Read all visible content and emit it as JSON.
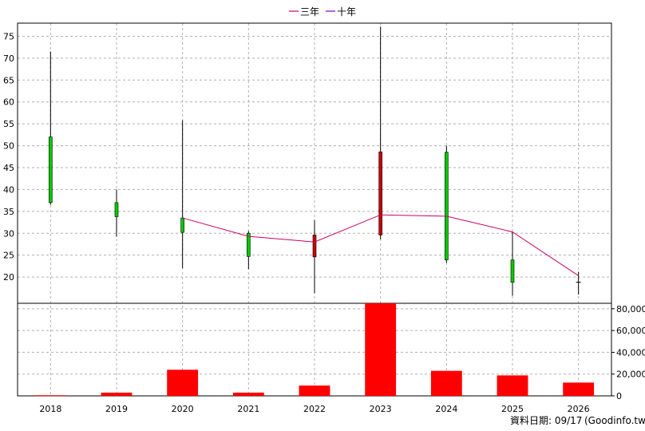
{
  "chart_data": {
    "type": "candlestick+bar",
    "legend": {
      "placement": "top-center",
      "items": [
        {
          "label": "三年",
          "color": "#cc0066"
        },
        {
          "label": "十年",
          "color": "#7a00cc"
        }
      ]
    },
    "x_categories": [
      "2018",
      "2019",
      "2020",
      "2021",
      "2022",
      "2023",
      "2024",
      "2025",
      "2026"
    ],
    "price_axis": {
      "ylim": [
        14,
        78
      ],
      "ticks": [
        20,
        25,
        30,
        35,
        40,
        45,
        50,
        55,
        60,
        65,
        70,
        75
      ],
      "side": "left"
    },
    "volume_axis": {
      "ylim": [
        0,
        85000
      ],
      "ticks": [
        0,
        20000,
        40000,
        60000,
        80000
      ],
      "tick_labels": [
        "0",
        "20,000",
        "40,000",
        "60,000",
        "80,000"
      ],
      "side": "right"
    },
    "candles": [
      {
        "year": "2018",
        "open": 52.0,
        "close": 37.0,
        "high": 71.5,
        "low": 36.5,
        "color": "#00cc00"
      },
      {
        "year": "2019",
        "open": 37.0,
        "close": 33.8,
        "high": 40.0,
        "low": 29.2,
        "color": "#00cc00"
      },
      {
        "year": "2020",
        "open": 33.5,
        "close": 30.2,
        "high": 55.8,
        "low": 22.0,
        "color": "#00cc00"
      },
      {
        "year": "2021",
        "open": 30.0,
        "close": 24.7,
        "high": 30.5,
        "low": 21.8,
        "color": "#00cc00"
      },
      {
        "year": "2022",
        "open": 24.6,
        "close": 29.6,
        "high": 33.0,
        "low": 16.3,
        "color": "#cc0000"
      },
      {
        "year": "2023",
        "open": 29.6,
        "close": 48.6,
        "high": 77.2,
        "low": 28.6,
        "color": "#cc0000"
      },
      {
        "year": "2024",
        "open": 48.5,
        "close": 23.9,
        "high": 50.0,
        "low": 23.2,
        "color": "#00cc00"
      },
      {
        "year": "2025",
        "open": 23.9,
        "close": 18.8,
        "high": 30.3,
        "low": 15.7,
        "color": "#00cc00"
      },
      {
        "year": "2026",
        "open": 18.8,
        "close": 18.8,
        "high": 21.2,
        "low": 16.0,
        "color": "#00cc00"
      }
    ],
    "ma_lines": [
      {
        "name": "三年",
        "color": "#cc0066",
        "points": [
          {
            "x": "2020",
            "y": 33.5
          },
          {
            "x": "2021",
            "y": 29.3
          },
          {
            "x": "2022",
            "y": 28.0
          },
          {
            "x": "2023",
            "y": 34.2
          },
          {
            "x": "2024",
            "y": 33.9
          },
          {
            "x": "2025",
            "y": 30.3
          },
          {
            "x": "2026",
            "y": 20.3
          }
        ]
      }
    ],
    "volumes": [
      {
        "year": "2018",
        "value": 600
      },
      {
        "year": "2019",
        "value": 3000
      },
      {
        "year": "2020",
        "value": 24000
      },
      {
        "year": "2021",
        "value": 3000
      },
      {
        "year": "2022",
        "value": 9500
      },
      {
        "year": "2023",
        "value": 85000
      },
      {
        "year": "2024",
        "value": 23000
      },
      {
        "year": "2025",
        "value": 18800
      },
      {
        "year": "2026",
        "value": 12200
      }
    ],
    "volume_color": "#ff0000",
    "grid": true
  },
  "footer": {
    "data_date": "資料日期: 09/17",
    "source": "(Goodinfo.tw)"
  }
}
